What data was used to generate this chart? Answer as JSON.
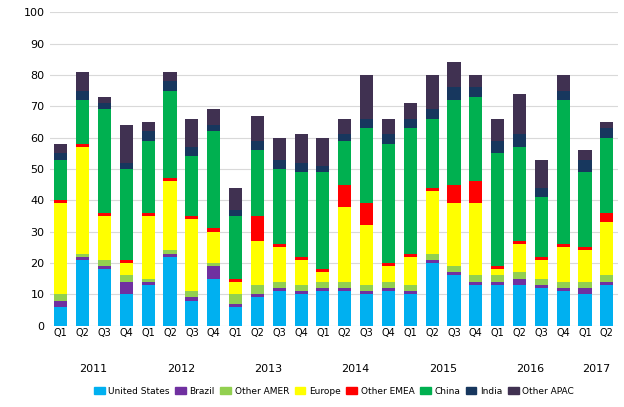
{
  "quarters": [
    "Q1",
    "Q2",
    "Q3",
    "Q4",
    "Q1",
    "Q2",
    "Q3",
    "Q4",
    "Q1",
    "Q2",
    "Q3",
    "Q4",
    "Q1",
    "Q2",
    "Q3",
    "Q4",
    "Q1",
    "Q2",
    "Q3",
    "Q4",
    "Q1",
    "Q2",
    "Q3",
    "Q4",
    "Q1",
    "Q2"
  ],
  "years": [
    "2011",
    "2011",
    "2011",
    "2011",
    "2012",
    "2012",
    "2012",
    "2012",
    "2013",
    "2013",
    "2013",
    "2013",
    "2014",
    "2014",
    "2014",
    "2014",
    "2015",
    "2015",
    "2015",
    "2015",
    "2016",
    "2016",
    "2016",
    "2016",
    "2017",
    "2017"
  ],
  "series": {
    "United States": [
      6,
      21,
      18,
      10,
      13,
      22,
      8,
      15,
      6,
      9,
      11,
      10,
      11,
      11,
      10,
      11,
      10,
      20,
      16,
      13,
      13,
      13,
      12,
      11,
      10,
      13
    ],
    "Brazil": [
      2,
      1,
      1,
      4,
      1,
      1,
      1,
      4,
      1,
      1,
      1,
      1,
      1,
      1,
      1,
      1,
      1,
      1,
      1,
      1,
      1,
      2,
      1,
      1,
      2,
      1
    ],
    "Other AMER": [
      2,
      1,
      2,
      2,
      1,
      1,
      2,
      1,
      3,
      3,
      2,
      2,
      2,
      2,
      2,
      2,
      2,
      2,
      2,
      2,
      2,
      2,
      2,
      2,
      2,
      2
    ],
    "Europe": [
      29,
      34,
      14,
      4,
      20,
      22,
      23,
      10,
      4,
      14,
      11,
      8,
      3,
      24,
      19,
      5,
      9,
      20,
      20,
      23,
      2,
      9,
      6,
      11,
      10,
      17
    ],
    "Other EMEA": [
      1,
      1,
      1,
      1,
      1,
      1,
      1,
      1,
      1,
      8,
      1,
      1,
      1,
      7,
      7,
      1,
      1,
      1,
      6,
      7,
      1,
      1,
      1,
      1,
      1,
      3
    ],
    "China": [
      13,
      14,
      33,
      29,
      23,
      28,
      19,
      31,
      20,
      21,
      24,
      27,
      31,
      14,
      24,
      38,
      40,
      22,
      27,
      27,
      36,
      30,
      19,
      46,
      24,
      24
    ],
    "India": [
      2,
      3,
      2,
      2,
      3,
      3,
      3,
      2,
      2,
      3,
      3,
      3,
      2,
      2,
      3,
      3,
      3,
      3,
      4,
      3,
      4,
      4,
      3,
      3,
      4,
      3
    ],
    "Other APAC": [
      3,
      6,
      2,
      12,
      3,
      3,
      9,
      5,
      7,
      8,
      7,
      9,
      9,
      5,
      14,
      5,
      5,
      11,
      8,
      4,
      7,
      13,
      9,
      5,
      3,
      2
    ]
  },
  "colors": {
    "United States": "#00B0F0",
    "Brazil": "#7030A0",
    "Other AMER": "#92D050",
    "Europe": "#FFFF00",
    "Other EMEA": "#FF0000",
    "China": "#00B050",
    "India": "#17375E",
    "Other APAC": "#403151"
  },
  "series_order": [
    "United States",
    "Brazil",
    "Other AMER",
    "Europe",
    "Other EMEA",
    "China",
    "India",
    "Other APAC"
  ],
  "ylim": [
    0,
    100
  ],
  "yticks": [
    0,
    10,
    20,
    30,
    40,
    50,
    60,
    70,
    80,
    90,
    100
  ],
  "background_color": "#FFFFFF",
  "grid_color": "#D9D9D9"
}
